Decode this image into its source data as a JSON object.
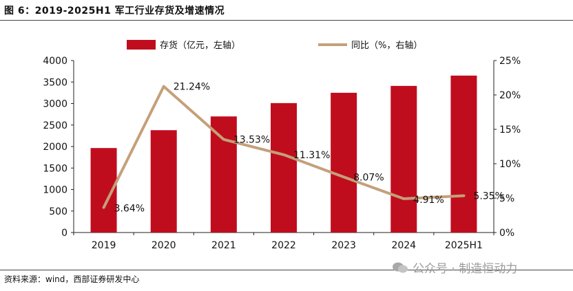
{
  "figure_title": "图 6：2019-2025H1 军工行业存货及增速情况",
  "source": "资料来源：wind，西部证券研发中心",
  "watermark": "公众号 · 制造恒动力",
  "colors": {
    "bar": "#c00d1e",
    "line": "#c4a07a"
  },
  "chart_data": {
    "type": "bar+line",
    "categories": [
      "2019",
      "2020",
      "2021",
      "2022",
      "2023",
      "2024",
      "2025H1"
    ],
    "series": [
      {
        "name": "存货（亿元，左轴）",
        "type": "bar",
        "axis": "left",
        "values": [
          1965,
          2380,
          2700,
          3010,
          3250,
          3410,
          3650
        ]
      },
      {
        "name": "同比（%，右轴）",
        "type": "line",
        "axis": "right",
        "values": [
          3.64,
          21.24,
          13.53,
          11.31,
          8.07,
          4.91,
          5.35
        ],
        "labels": [
          "3.64%",
          "21.24%",
          "13.53%",
          "11.31%",
          "8.07%",
          "4.91%",
          "5.35%"
        ]
      }
    ],
    "left_axis": {
      "min": 0,
      "max": 4000,
      "step": 500,
      "ticks": [
        "0",
        "500",
        "1000",
        "1500",
        "2000",
        "2500",
        "3000",
        "3500",
        "4000"
      ]
    },
    "right_axis": {
      "min": 0,
      "max": 25,
      "step": 5,
      "ticks": [
        "0%",
        "5%",
        "10%",
        "15%",
        "20%",
        "25%"
      ]
    },
    "legend": {
      "placement": "top-center",
      "items": [
        "存货（亿元，左轴）",
        "同比（%，右轴）"
      ]
    }
  }
}
